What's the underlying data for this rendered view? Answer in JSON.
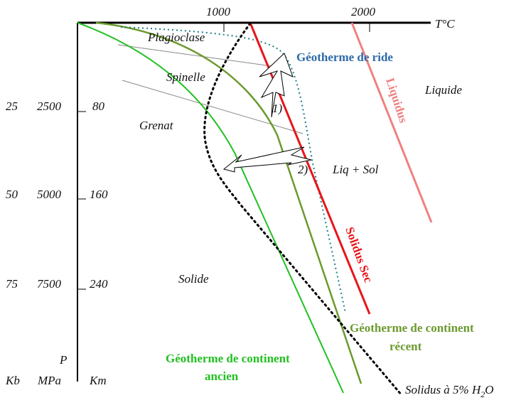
{
  "axes": {
    "temperature_label": "T°C",
    "temperature_ticks": [
      "1000",
      "2000"
    ],
    "pressure_label": "P",
    "unit_labels": [
      "Kb",
      "MPa",
      "Km"
    ],
    "depth_rows": [
      {
        "kb": "25",
        "mpa": "2500",
        "km": "80"
      },
      {
        "kb": "50",
        "mpa": "5000",
        "km": "160"
      },
      {
        "kb": "75",
        "mpa": "7500",
        "km": "240"
      }
    ]
  },
  "fields": {
    "plagioclase": "Plagioclase",
    "spinelle": "Spinelle",
    "grenat": "Grenat",
    "liquide": "Liquide",
    "liq_sol": "Liq + Sol",
    "solide": "Solide"
  },
  "arrows": {
    "one": "1)",
    "two": "2)"
  },
  "curves": {
    "ridge": {
      "label": "Géotherme de ride",
      "color": "#2e6aa8",
      "line_color": "#1b7f86"
    },
    "liquidus": {
      "label": "Liquidus",
      "color": "#f08080"
    },
    "dry_solidus": {
      "label": "Solidus Sec",
      "color": "#e8141a"
    },
    "recent_continent": {
      "label_line1": "Géotherme de continent",
      "label_line2": "récent",
      "color": "#6b9a2e"
    },
    "old_continent": {
      "label_line1": "Géotherme de continent",
      "label_line2": "ancien",
      "color": "#22c022"
    },
    "wet_solidus": {
      "label": "Solidus à 5% H",
      "subscript": "2",
      "label_end": "O",
      "color": "#000000"
    }
  }
}
